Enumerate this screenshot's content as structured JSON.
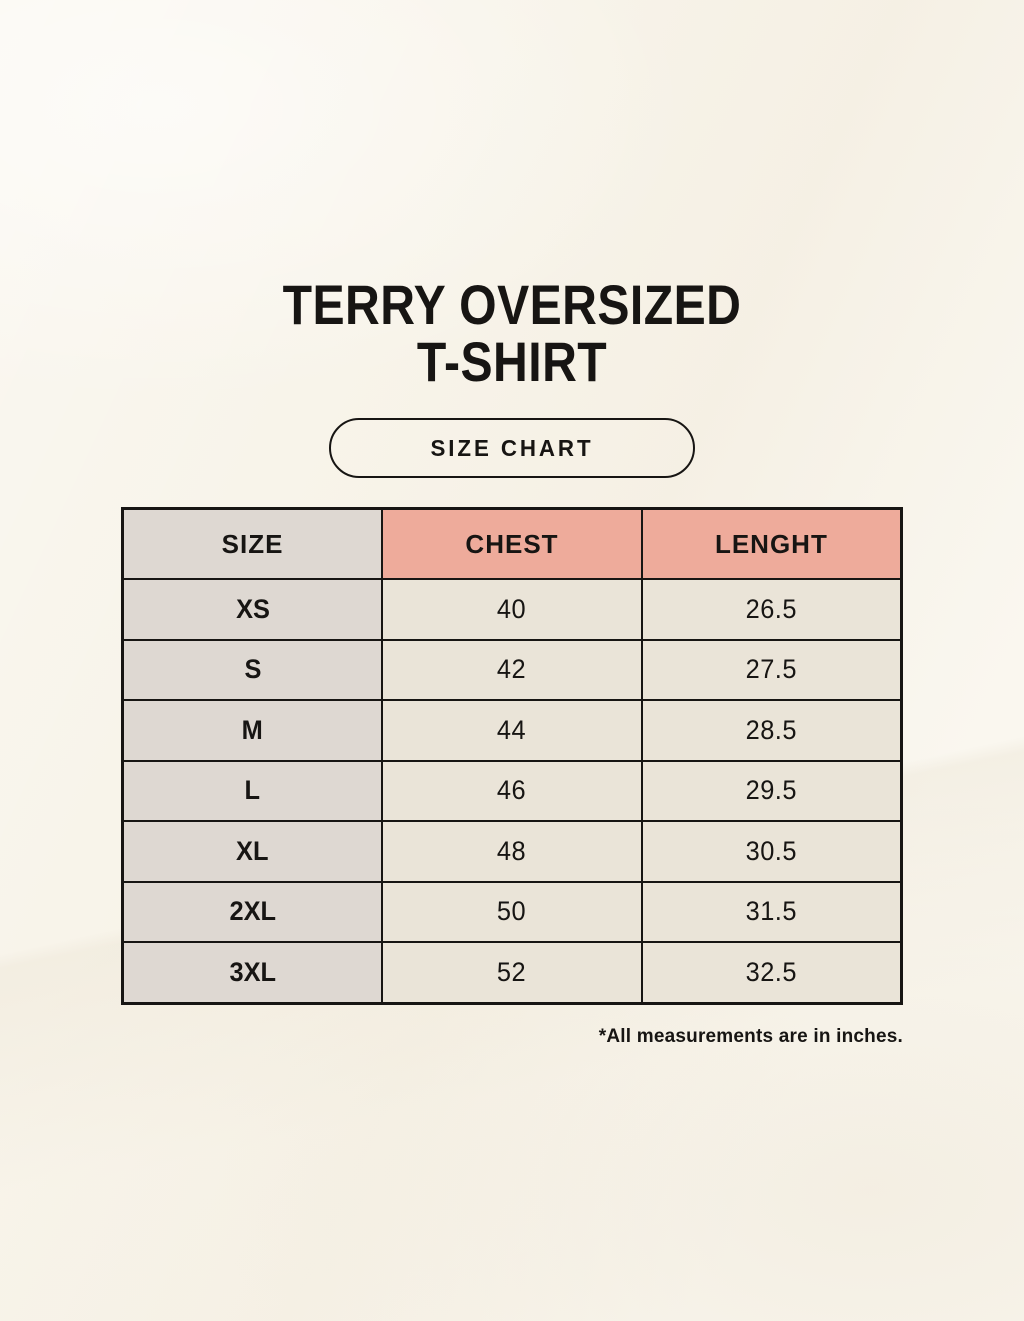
{
  "page": {
    "title_line1": "TERRY OVERSIZED",
    "title_line2": "T-SHIRT",
    "badge_label": "SIZE CHART",
    "footnote": "*All measurements are in inches."
  },
  "colors": {
    "background": "#f8f4ea",
    "ink": "#171513",
    "table_border": "#171513",
    "size_column_bg": "#ded8d2",
    "measure_header_bg": "#eeab9b",
    "value_cell_bg": "#eae4d8"
  },
  "chart_data": {
    "type": "table",
    "title": "TERRY OVERSIZED T-SHIRT",
    "columns": [
      "SIZE",
      "CHEST",
      "LENGHT"
    ],
    "rows": [
      [
        "XS",
        "40",
        "26.5"
      ],
      [
        "S",
        "42",
        "27.5"
      ],
      [
        "M",
        "44",
        "28.5"
      ],
      [
        "L",
        "46",
        "29.5"
      ],
      [
        "XL",
        "48",
        "30.5"
      ],
      [
        "2XL",
        "50",
        "31.5"
      ],
      [
        "3XL",
        "52",
        "32.5"
      ]
    ],
    "units_note": "*All measurements are in inches.",
    "layout": {
      "grid": "on",
      "header_row": true,
      "columns_equal_width": true
    }
  }
}
